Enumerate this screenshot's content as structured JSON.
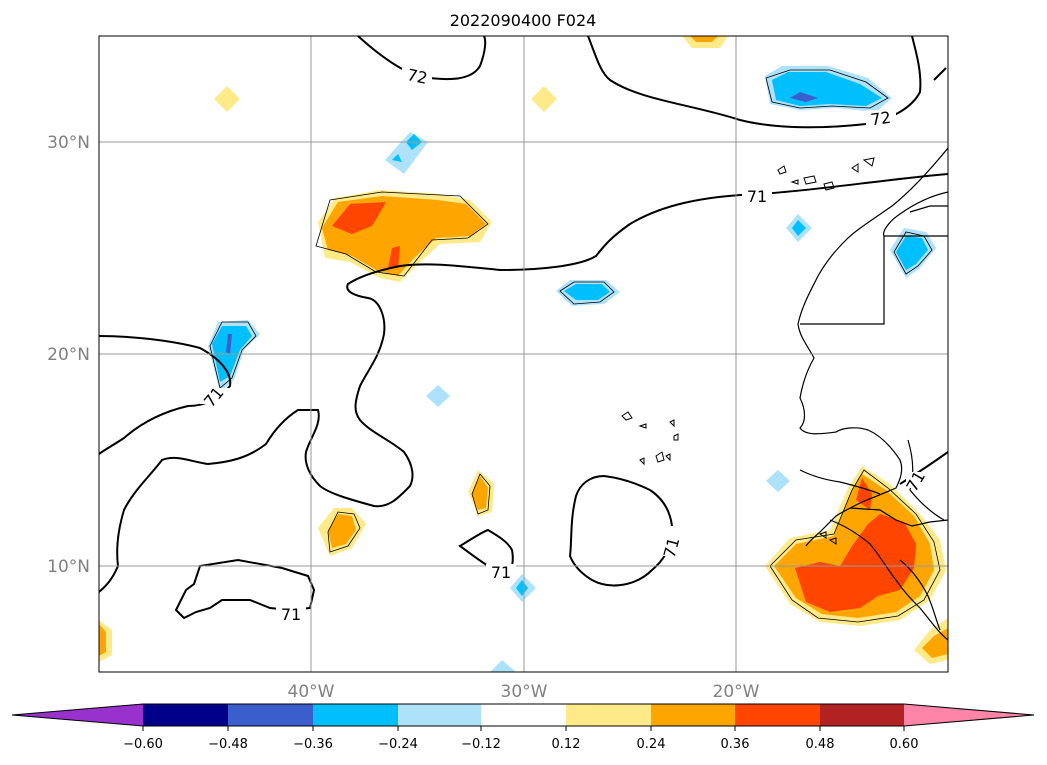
{
  "title": "2022090400 F024",
  "colors": {
    "pos1": "#ffea8a",
    "pos2": "#ffa500",
    "pos3": "#ff4500",
    "pos4": "#b22222",
    "pos5": "#ff85a8",
    "neg1": "#aee2fb",
    "neg2": "#00bfff",
    "neg3": "#3a5fcd",
    "neg4": "#00008b",
    "neg5": "#9932cc",
    "zero": "#ffffff"
  },
  "lat_labels": [
    "30°N",
    "20°N",
    "10°N"
  ],
  "lon_labels": [
    "40°W",
    "30°W",
    "20°W"
  ],
  "contour_labels": [
    "72",
    "72",
    "71",
    "71",
    "71",
    "71",
    "71",
    "71"
  ],
  "colorbar": {
    "ticks": [
      "−0.60",
      "−0.48",
      "−0.36",
      "−0.24",
      "−0.12",
      "0.12",
      "0.24",
      "0.36",
      "0.48",
      "0.60"
    ]
  }
}
